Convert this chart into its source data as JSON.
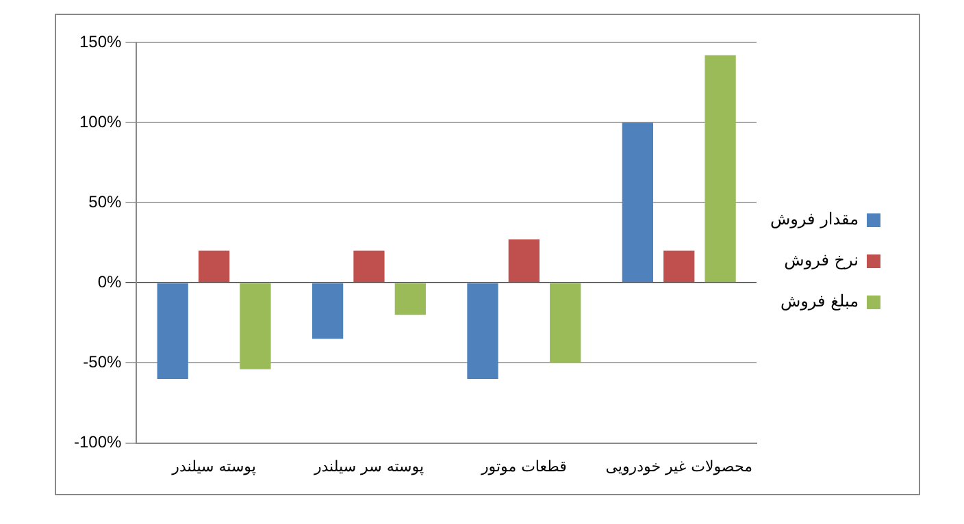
{
  "chart_data": {
    "type": "bar",
    "categories": [
      "پوسته سیلندر",
      "پوسته سر سیلندر",
      "قطعات موتور",
      "محصولات غیر خودرویی"
    ],
    "series": [
      {
        "name": "مقدار فروش",
        "color": "#4f81bd",
        "values": [
          -60,
          -35,
          -60,
          100
        ]
      },
      {
        "name": "نرخ فروش",
        "color": "#c0504d",
        "values": [
          20,
          20,
          27,
          20
        ]
      },
      {
        "name": "مبلغ فروش",
        "color": "#9bbb59",
        "values": [
          -54,
          -20,
          -50,
          142
        ]
      }
    ],
    "ylim": [
      -100,
      150
    ],
    "yticks": [
      {
        "value": -100,
        "label": "-100%"
      },
      {
        "value": -50,
        "label": "-50%"
      },
      {
        "value": 0,
        "label": "0%"
      },
      {
        "value": 50,
        "label": "50%"
      },
      {
        "value": 100,
        "label": "100%"
      },
      {
        "value": 150,
        "label": "150%"
      }
    ],
    "grid": "y",
    "legend": "right"
  }
}
